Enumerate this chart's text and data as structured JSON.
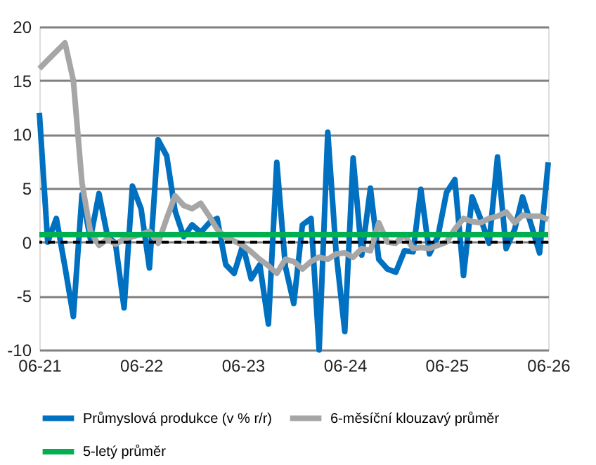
{
  "chart_data": {
    "type": "line",
    "x": [
      "2021-06",
      "2021-07",
      "2021-08",
      "2021-09",
      "2021-10",
      "2021-11",
      "2021-12",
      "2022-01",
      "2022-02",
      "2022-03",
      "2022-04",
      "2022-05",
      "2022-06",
      "2022-07",
      "2022-08",
      "2022-09",
      "2022-10",
      "2022-11",
      "2022-12",
      "2023-01",
      "2023-02",
      "2023-03",
      "2023-04",
      "2023-05",
      "2023-06",
      "2023-07",
      "2023-08",
      "2023-09",
      "2023-10",
      "2023-11",
      "2023-12",
      "2024-01",
      "2024-02",
      "2024-03",
      "2024-04",
      "2024-05",
      "2024-06",
      "2024-07",
      "2024-08",
      "2024-09",
      "2024-10",
      "2024-11",
      "2024-12",
      "2025-01",
      "2025-02",
      "2025-03",
      "2025-04",
      "2025-05",
      "2025-06",
      "2025-07",
      "2025-08",
      "2025-09",
      "2025-10",
      "2025-11",
      "2025-12",
      "2026-01",
      "2026-02",
      "2026-03",
      "2026-04",
      "2026-05",
      "2026-06"
    ],
    "series": [
      {
        "name": "Průmyslová produkce (v % r/r)",
        "color": "#0070c0",
        "values": [
          12,
          0,
          2.2,
          -2.3,
          -6.9,
          4.4,
          0.3,
          4.5,
          0.5,
          -0.1,
          -6.1,
          5.2,
          3.1,
          -2.4,
          9.5,
          8,
          2.9,
          0.5,
          1.6,
          0.9,
          1.8,
          2.2,
          -2.1,
          -2.9,
          -0.3,
          -3.4,
          -2.1,
          -7.6,
          7.4,
          -2.3,
          -5.7,
          1.6,
          2.2,
          -10,
          10.2,
          -1,
          -8.3,
          7.8,
          -1.2,
          5,
          -1.6,
          -2.5,
          -2.8,
          -0.8,
          -0.9,
          4.9,
          -1.1,
          0.5,
          4.6,
          5.8,
          -3.1,
          4.2,
          2.2,
          -0.1,
          7.9,
          -0.6,
          1.2,
          4.2,
          1.6,
          -1,
          7.4
        ]
      },
      {
        "name": "6-měsíční klouzavý průměr",
        "color": "#a6a6a6",
        "values": [
          16.1,
          16.9,
          17.7,
          18.5,
          15,
          5.5,
          1,
          -0.3,
          0.3,
          -0.2,
          0.3,
          0.5,
          0.7,
          1,
          -0.1,
          2.2,
          4.3,
          3.4,
          3.1,
          3.6,
          2.4,
          1.2,
          0.4,
          0.1,
          -0.3,
          -0.9,
          -1.6,
          -2.2,
          -2.9,
          -1.6,
          -1.8,
          -2.5,
          -1.8,
          -1.4,
          -1.6,
          -1.1,
          -1,
          -1.4,
          -0.6,
          -0.8,
          1.8,
          0,
          -0.1,
          0.7,
          -0.6,
          -0.5,
          -0.6,
          -0.3,
          0,
          1.2,
          2.2,
          1.9,
          1.8,
          2.2,
          2.4,
          2.8,
          1.8,
          2.5,
          2.4,
          2.4,
          2.1
        ]
      },
      {
        "name": "5-letý průměr",
        "color": "#00b050",
        "x": [
          "2021-06",
          "2026-06"
        ],
        "values": [
          0.7,
          0.7
        ]
      }
    ],
    "ref_lines": [
      {
        "axis": "y",
        "value": 0,
        "color": "#000000",
        "line_style": "dashed"
      }
    ],
    "xlim": [
      "2021-06",
      "2026-06"
    ],
    "xticks": [
      {
        "value": "2021-06",
        "label": "06-21"
      },
      {
        "value": "2022-06",
        "label": "06-22"
      },
      {
        "value": "2023-06",
        "label": "06-23"
      },
      {
        "value": "2024-06",
        "label": "06-24"
      },
      {
        "value": "2025-06",
        "label": "06-25"
      },
      {
        "value": "2026-06",
        "label": "06-26"
      }
    ],
    "ylim": [
      -10,
      20
    ],
    "yticks": [
      -10,
      -5,
      0,
      5,
      10,
      15,
      20
    ],
    "grid": "y",
    "legend": "bottom"
  }
}
